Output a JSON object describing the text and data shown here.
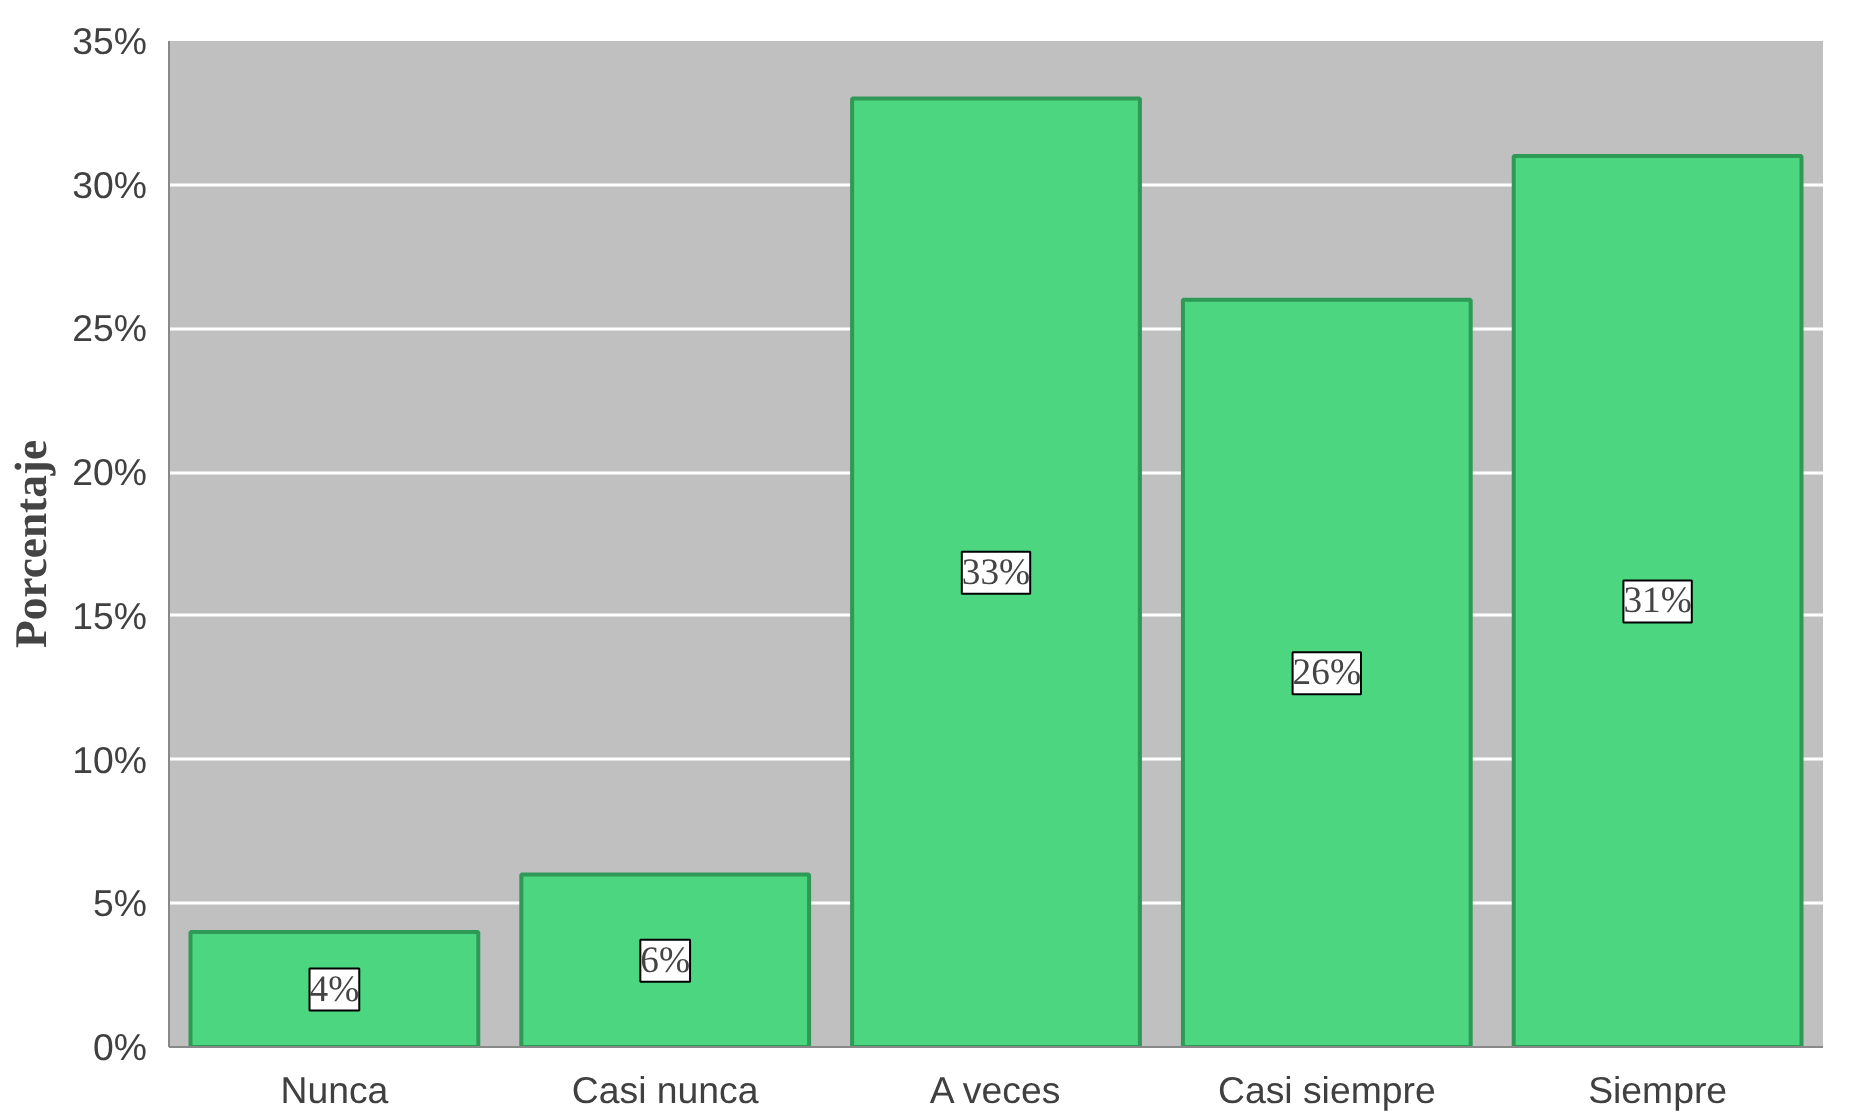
{
  "chart_data": {
    "type": "bar",
    "ylabel": "Porcentaje",
    "categories": [
      "Nunca",
      "Casi nunca",
      "A veces",
      "Casi siempre",
      "Siempre"
    ],
    "values": [
      4,
      6,
      33,
      26,
      31
    ],
    "value_labels": [
      "4%",
      "6%",
      "33%",
      "26%",
      "31%"
    ],
    "color": "#4cd680",
    "ylim": [
      0,
      35
    ],
    "yticks": [
      {
        "value": 0,
        "label": "0%"
      },
      {
        "value": 5,
        "label": "5%"
      },
      {
        "value": 10,
        "label": "10%"
      },
      {
        "value": 15,
        "label": "15%"
      },
      {
        "value": 20,
        "label": "20%"
      },
      {
        "value": 25,
        "label": "25%"
      },
      {
        "value": 30,
        "label": "30%"
      },
      {
        "value": 35,
        "label": "35%"
      }
    ],
    "grid": "y"
  }
}
